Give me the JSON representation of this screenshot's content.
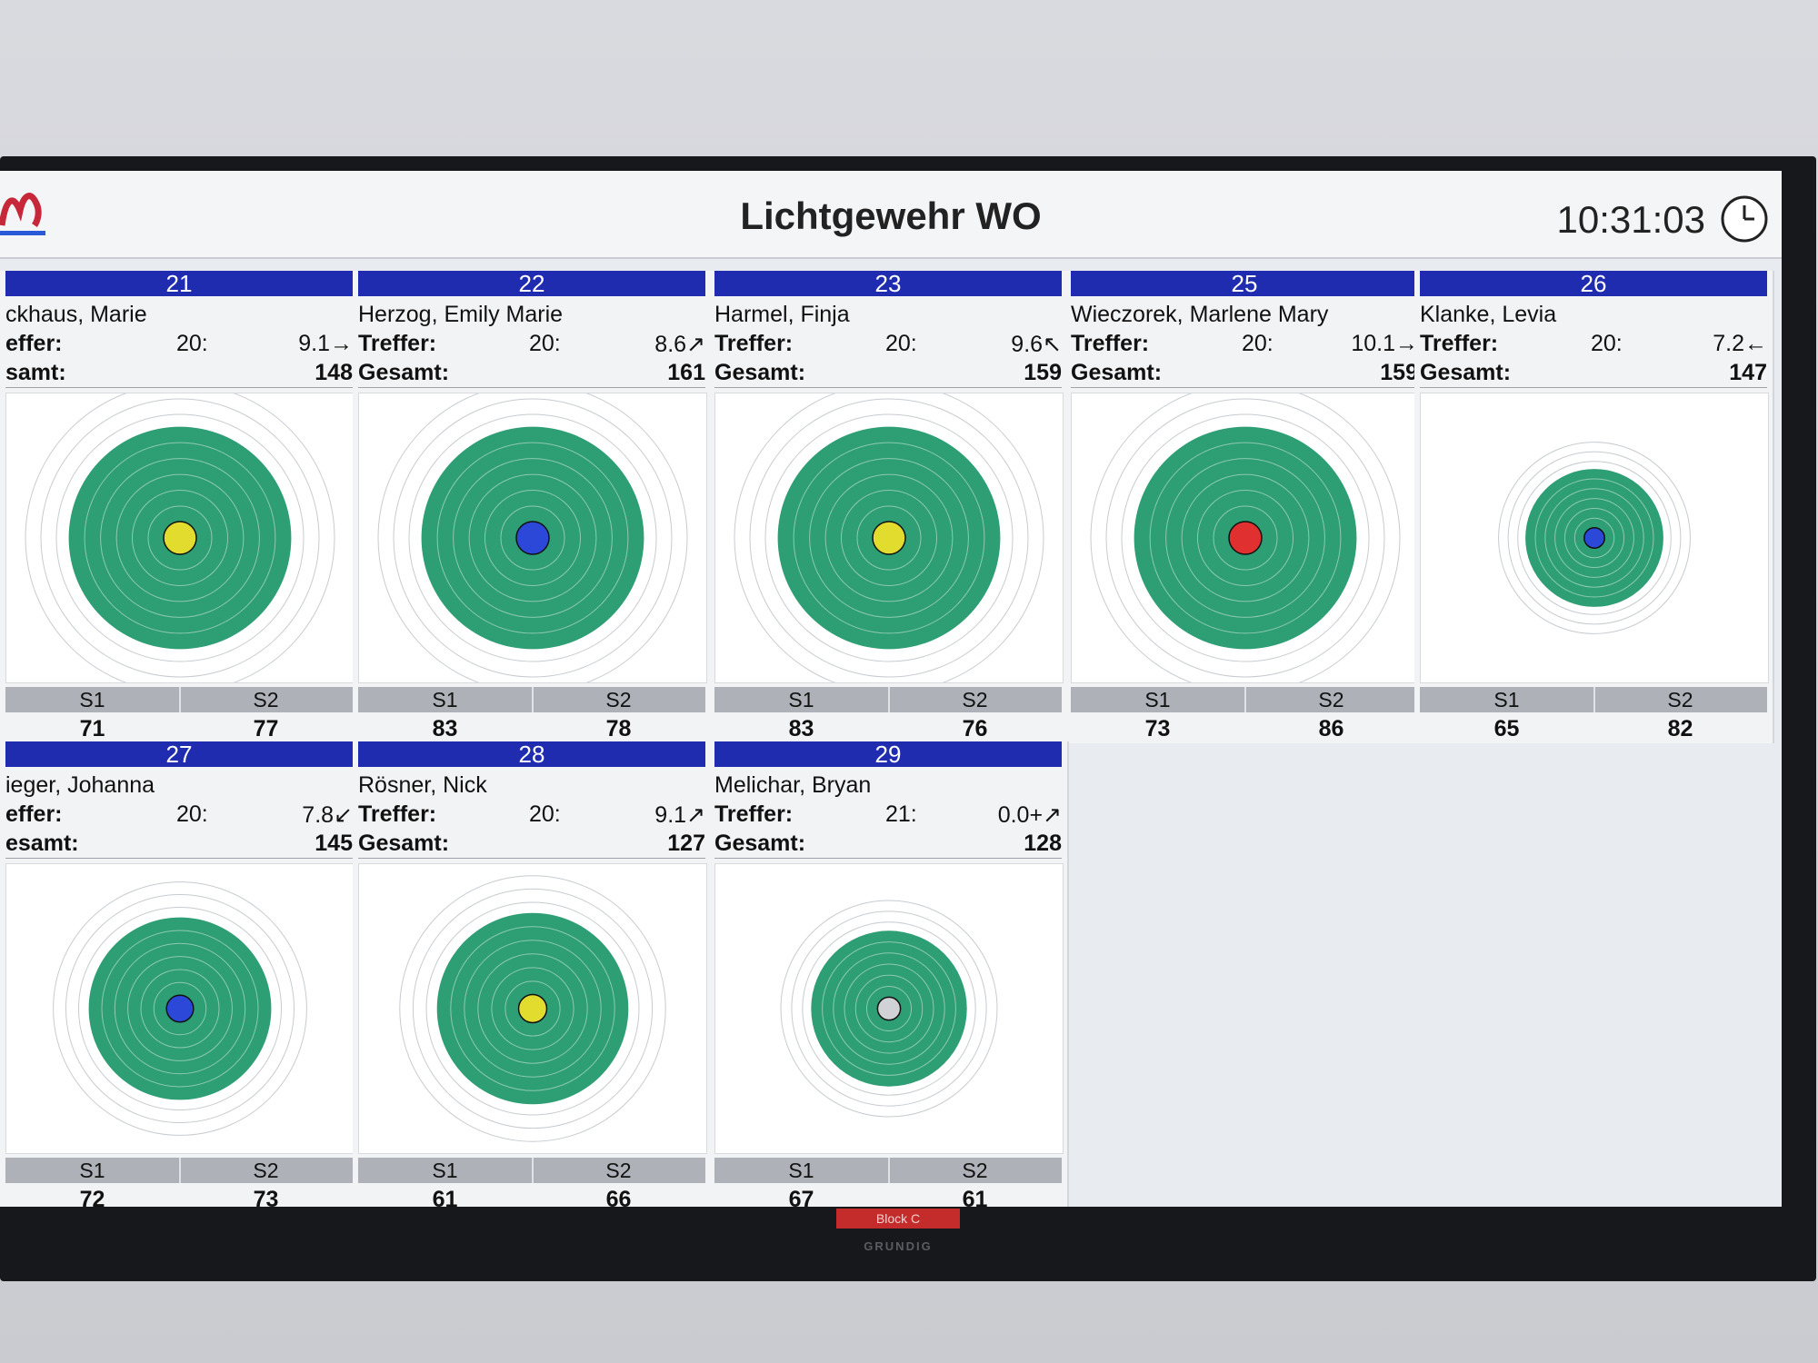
{
  "header": {
    "title": "Lichtgewehr WO",
    "time": "10:31:03"
  },
  "labels": {
    "hits": "Treffer:",
    "total": "Gesamt:",
    "s1": "S1",
    "s2": "S2"
  },
  "colors": {
    "lane_bar": "#1f2cb0",
    "target_green": "#2e9e74",
    "shot": "#1b1b1b",
    "last_shot_yellow": "#e2dc2e",
    "last_shot_blue": "#2c48d8",
    "last_shot_red": "#e03030"
  },
  "lanes": [
    {
      "lane": "21",
      "name": "ckhaus, Marie",
      "hits_label": "effer:",
      "total_label": "samt:",
      "shots": "20:",
      "last": "9.1",
      "arrow": "→",
      "total": "148",
      "s1": "71",
      "s2": "77",
      "last_color": "yellow"
    },
    {
      "lane": "22",
      "name": "Herzog, Emily Marie",
      "hits_label": "Treffer:",
      "total_label": "Gesamt:",
      "shots": "20:",
      "last": "8.6",
      "arrow": "↗",
      "total": "161",
      "s1": "83",
      "s2": "78",
      "last_color": "blue"
    },
    {
      "lane": "23",
      "name": "Harmel, Finja",
      "hits_label": "Treffer:",
      "total_label": "Gesamt:",
      "shots": "20:",
      "last": "9.6",
      "arrow": "↖",
      "total": "159",
      "s1": "83",
      "s2": "76",
      "last_color": "yellow"
    },
    {
      "lane": "25",
      "name": "Wieczorek, Marlene Mary",
      "hits_label": "Treffer:",
      "total_label": "Gesamt:",
      "shots": "20:",
      "last": "10.1",
      "arrow": "→",
      "total": "159",
      "s1": "73",
      "s2": "86",
      "last_color": "red"
    },
    {
      "lane": "26",
      "name": "Klanke, Levia",
      "hits_label": "Treffer:",
      "total_label": "Gesamt:",
      "shots": "20:",
      "last": "7.2",
      "arrow": "←",
      "total": "147",
      "s1": "65",
      "s2": "82",
      "last_color": "blue"
    },
    {
      "lane": "27",
      "name": "ieger, Johanna",
      "hits_label": "effer:",
      "total_label": "esamt:",
      "shots": "20:",
      "last": "7.8",
      "arrow": "↙",
      "total": "145",
      "s1": "72",
      "s2": "73",
      "last_color": "blue"
    },
    {
      "lane": "28",
      "name": "Rösner, Nick",
      "hits_label": "Treffer:",
      "total_label": "Gesamt:",
      "shots": "20:",
      "last": "9.1",
      "arrow": "↗",
      "total": "127",
      "s1": "61",
      "s2": "66",
      "last_color": "yellow"
    },
    {
      "lane": "29",
      "name": "Melichar, Bryan",
      "hits_label": "Treffer:",
      "total_label": "Gesamt:",
      "shots": "21:",
      "last": "0.0+",
      "arrow": "↗",
      "total": "128",
      "s1": "67",
      "s2": "61",
      "last_color": "gray"
    }
  ],
  "footer": {
    "block": "Block C",
    "brand": "GRUNDIG"
  }
}
